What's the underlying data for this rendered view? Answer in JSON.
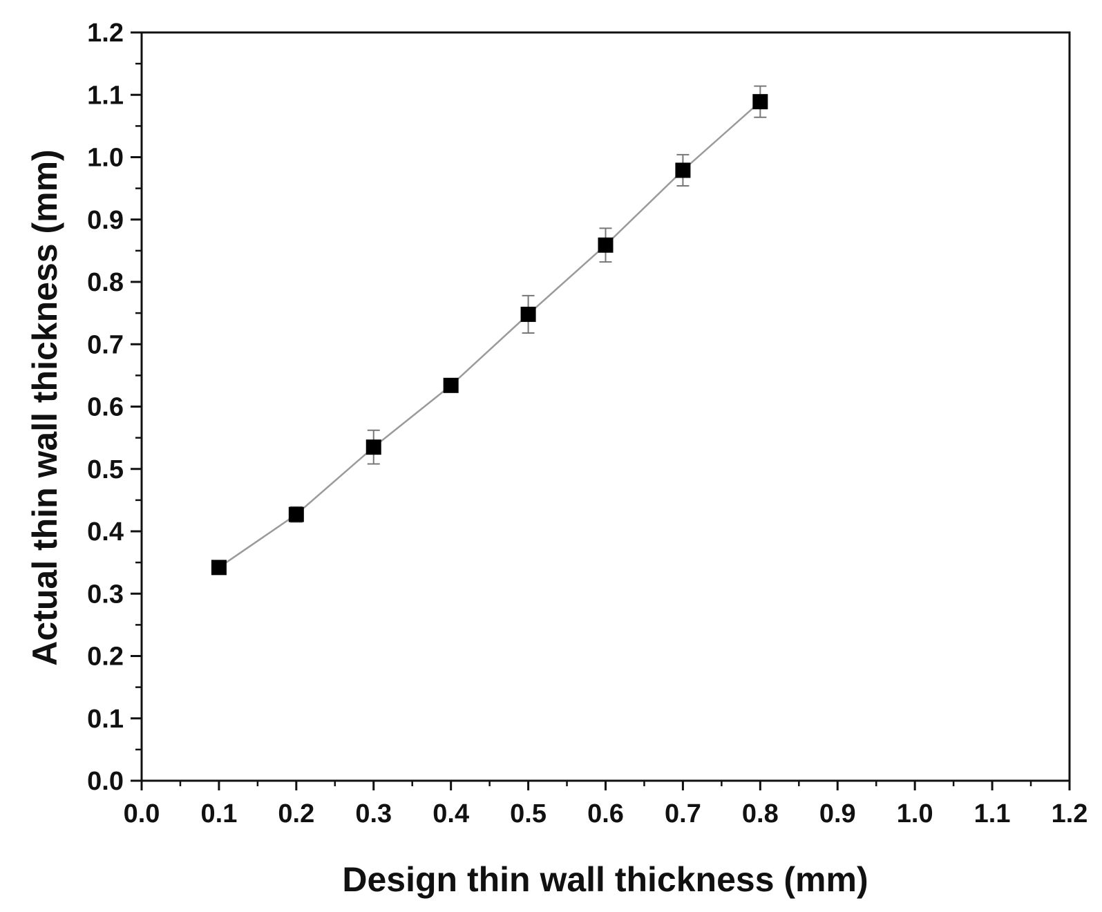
{
  "chart_data": {
    "type": "line",
    "title": "",
    "xlabel": "Design thin wall thickness (mm)",
    "ylabel": "Actual thin wall thickness (mm)",
    "xlim": [
      0.0,
      1.2
    ],
    "ylim": [
      0.0,
      1.2
    ],
    "x_ticks": [
      "0.0",
      "0.1",
      "0.2",
      "0.3",
      "0.4",
      "0.5",
      "0.6",
      "0.7",
      "0.8",
      "0.9",
      "1.0",
      "1.1",
      "1.2"
    ],
    "y_ticks": [
      "0.0",
      "0.1",
      "0.2",
      "0.3",
      "0.4",
      "0.5",
      "0.6",
      "0.7",
      "0.8",
      "0.9",
      "1.0",
      "1.1",
      "1.2"
    ],
    "grid": false,
    "legend": "none",
    "series": [
      {
        "marker": "filled-square",
        "color": "#000000",
        "line_color": "#9a9a9a",
        "x": [
          0.1,
          0.2,
          0.3,
          0.4,
          0.5,
          0.6,
          0.7,
          0.8
        ],
        "y": [
          0.342,
          0.427,
          0.535,
          0.634,
          0.748,
          0.859,
          0.979,
          1.089
        ],
        "error": [
          0.008,
          0.012,
          0.027,
          0.008,
          0.03,
          0.027,
          0.025,
          0.025
        ]
      }
    ]
  }
}
